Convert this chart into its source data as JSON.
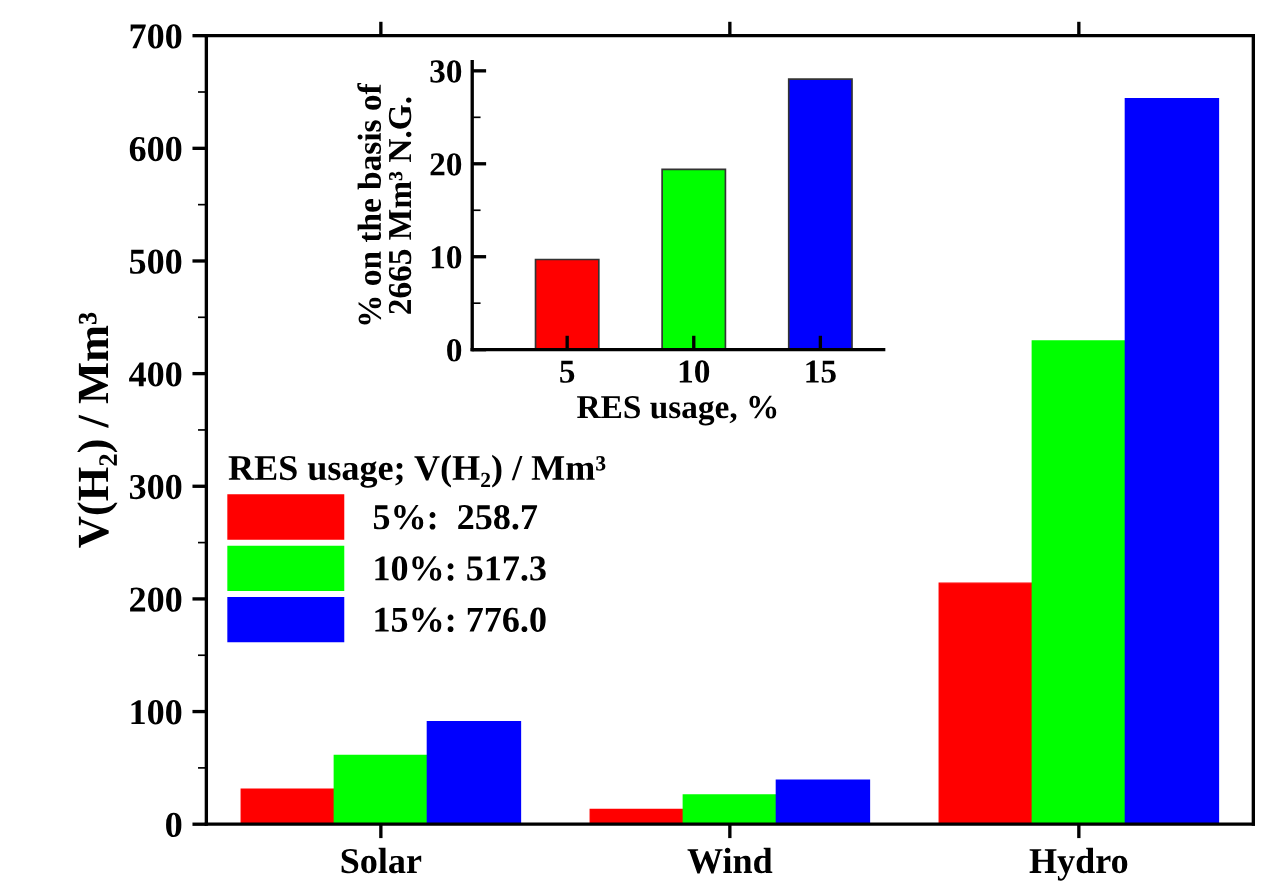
{
  "chart_data": [
    {
      "type": "bar",
      "ylabel": "V(H₂) / Mm³",
      "categories": [
        "Solar",
        "Wind",
        "Hydro"
      ],
      "ylim": [
        0,
        700
      ],
      "yticks": [
        0,
        100,
        200,
        300,
        400,
        500,
        600,
        700
      ],
      "legend": "left",
      "legend_title": "RES usage; V(H₂) / Mm³",
      "grid": false,
      "series": [
        {
          "name": "5%:  258.7",
          "color": "#ff0000",
          "values": [
            31,
            13,
            214
          ]
        },
        {
          "name": "10%: 517.3",
          "color": "#00ff00",
          "values": [
            61,
            26,
            429
          ]
        },
        {
          "name": "15%: 776.0",
          "color": "#0000ff",
          "values": [
            91,
            39,
            644
          ]
        }
      ]
    },
    {
      "type": "bar",
      "xlabel": "RES usage, %",
      "ylabel": "% on the basis of\n2665 Mm³ N.G.",
      "categories": [
        "5",
        "10",
        "15"
      ],
      "values": [
        9.7,
        19.4,
        29.1
      ],
      "colors": [
        "#ff0000",
        "#00ff00",
        "#0000ff"
      ],
      "ylim": [
        0,
        31
      ],
      "yticks": [
        0,
        10,
        20,
        30
      ],
      "grid": false
    }
  ]
}
